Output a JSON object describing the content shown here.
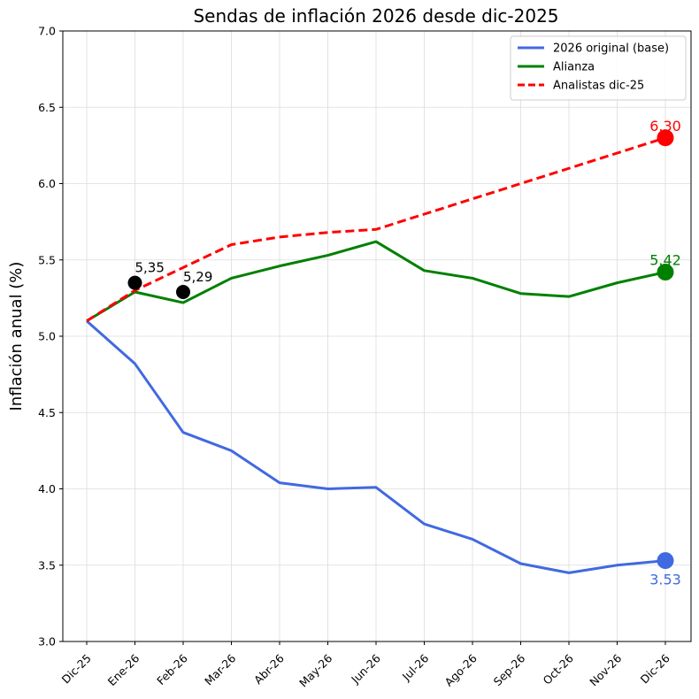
{
  "chart_data": {
    "type": "line",
    "title": "Sendas de inflación 2026 desde dic-2025",
    "xlabel": "",
    "ylabel": "Inflación anual (%)",
    "ylim": [
      3.0,
      7.0
    ],
    "yticks": [
      "3.0",
      "3.5",
      "4.0",
      "4.5",
      "5.0",
      "5.5",
      "6.0",
      "6.5",
      "7.0"
    ],
    "categories": [
      "Dic-25",
      "Ene-26",
      "Feb-26",
      "Mar-26",
      "Abr-26",
      "May-26",
      "Jun-26",
      "Jul-26",
      "Ago-26",
      "Sep-26",
      "Oct-26",
      "Nov-26",
      "Dic-26"
    ],
    "grid": true,
    "legend_position": "top-right",
    "series": [
      {
        "name": "2026 original (base)",
        "color": "#4169e1",
        "style": "solid",
        "values": [
          5.1,
          4.82,
          4.37,
          4.25,
          4.04,
          4.0,
          4.01,
          3.77,
          3.67,
          3.51,
          3.45,
          3.5,
          3.53
        ],
        "end_label": "3.53",
        "end_label_position": "below"
      },
      {
        "name": "Alianza",
        "color": "#008000",
        "style": "solid",
        "values": [
          5.1,
          5.29,
          5.22,
          5.38,
          5.46,
          5.53,
          5.62,
          5.43,
          5.38,
          5.28,
          5.26,
          5.35,
          5.42
        ],
        "end_label": "5.42",
        "end_label_position": "above"
      },
      {
        "name": "Analistas dic-25",
        "color": "#ff0000",
        "style": "dashed",
        "values": [
          5.1,
          5.3,
          5.45,
          5.6,
          5.65,
          5.68,
          5.7,
          5.8,
          5.9,
          6.0,
          6.1,
          6.2,
          6.3
        ],
        "end_label": "6.30",
        "end_label_position": "above"
      }
    ],
    "observed_points": [
      {
        "category": "Ene-26",
        "value": 5.35,
        "label": "5,35",
        "color": "#000000"
      },
      {
        "category": "Feb-26",
        "value": 5.29,
        "label": "5,29",
        "color": "#000000"
      }
    ]
  }
}
